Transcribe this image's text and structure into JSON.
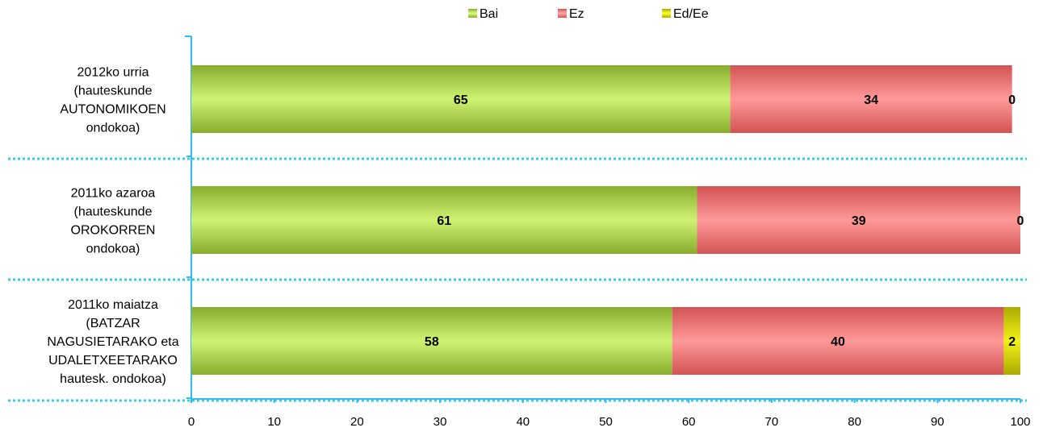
{
  "chart_data": {
    "type": "bar",
    "orientation": "horizontal",
    "stacked": true,
    "title": "",
    "xlabel": "",
    "ylabel": "",
    "xlim": [
      0,
      100
    ],
    "x_ticks": [
      0,
      10,
      20,
      30,
      40,
      50,
      60,
      70,
      80,
      90,
      100
    ],
    "legend_position": "top",
    "categories": [
      [
        "2012ko urria",
        "(hauteskunde",
        "AUTONOMIKOEN",
        "ondokoa)"
      ],
      [
        "2011ko azaroa",
        "(hauteskunde",
        "OROKORREN",
        "ondokoa)"
      ],
      [
        "2011ko maiatza",
        "(BATZAR",
        "NAGUSIETARAKO eta",
        "UDALETXEETARAKO",
        "hautesk. ondokoa)"
      ]
    ],
    "series": [
      {
        "name": "Bai",
        "values": [
          65,
          61,
          58
        ],
        "color": "#b5da5a"
      },
      {
        "name": "Ez",
        "values": [
          34,
          39,
          40
        ],
        "color": "#ff8080"
      },
      {
        "name": "Ed/Ee",
        "values": [
          0,
          0,
          2
        ],
        "color": "#d8d800"
      }
    ],
    "separator_color": "#33ccee",
    "axis_color": "#33bbee"
  }
}
